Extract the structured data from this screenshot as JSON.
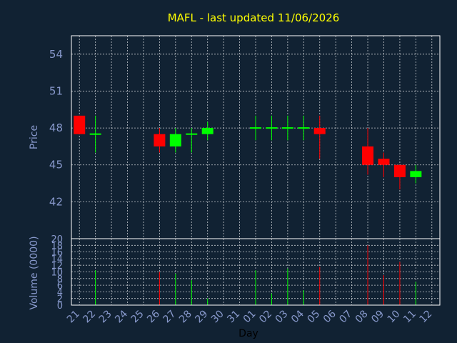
{
  "colors": {
    "background": "#112233",
    "up": "#00ff00",
    "down": "#ff0000",
    "title": "#ffff00",
    "axis_text": "#8899cc",
    "grid": "#ffffff"
  },
  "chart_data": {
    "type": "candlestick",
    "title": "MAFL - last updated 11/06/2026",
    "xlabel": "Day",
    "ylabel": "Price",
    "ylabel2": "Volume (0000)",
    "ylim": [
      39.0,
      55.5
    ],
    "yticks": [
      42,
      45,
      48,
      51,
      54
    ],
    "vol_ylim": [
      0,
      20
    ],
    "vol_ticks": [
      0,
      2,
      4,
      6,
      8,
      10,
      12,
      14,
      16,
      18,
      20
    ],
    "grid": true,
    "x_ticks": [
      "21",
      "22",
      "23",
      "24",
      "25",
      "26",
      "27",
      "28",
      "29",
      "30",
      "31",
      "01",
      "02",
      "03",
      "04",
      "05",
      "06",
      "07",
      "08",
      "09",
      "10",
      "11",
      "12"
    ],
    "candles": [
      {
        "x": "21",
        "open": 49.0,
        "close": 47.5,
        "high": 49.0,
        "low": 47.5,
        "volume": 0
      },
      {
        "x": "22",
        "open": 47.5,
        "close": 47.5,
        "high": 49.0,
        "low": 46.0,
        "volume": 10.5
      },
      {
        "x": "26",
        "open": 47.5,
        "close": 46.5,
        "high": 48.0,
        "low": 46.0,
        "volume": 10.0
      },
      {
        "x": "27",
        "open": 46.5,
        "close": 47.5,
        "high": 48.0,
        "low": 46.0,
        "volume": 9.5
      },
      {
        "x": "28",
        "open": 47.5,
        "close": 47.5,
        "high": 48.0,
        "low": 46.0,
        "volume": 7.5
      },
      {
        "x": "29",
        "open": 47.5,
        "close": 48.0,
        "high": 48.5,
        "low": 47.0,
        "volume": 2.0
      },
      {
        "x": "01",
        "open": 48.0,
        "close": 48.0,
        "high": 49.0,
        "low": 47.0,
        "volume": 10.5
      },
      {
        "x": "02",
        "open": 48.0,
        "close": 48.0,
        "high": 49.0,
        "low": 47.0,
        "volume": 3.5
      },
      {
        "x": "03",
        "open": 48.0,
        "close": 48.0,
        "high": 49.0,
        "low": 47.0,
        "volume": 11.0
      },
      {
        "x": "04",
        "open": 48.0,
        "close": 48.0,
        "high": 49.0,
        "low": 47.0,
        "volume": 4.5
      },
      {
        "x": "05",
        "open": 48.0,
        "close": 47.5,
        "high": 49.0,
        "low": 45.5,
        "volume": 11.5
      },
      {
        "x": "08",
        "open": 46.5,
        "close": 45.0,
        "high": 48.0,
        "low": 44.2,
        "volume": 18.0
      },
      {
        "x": "09",
        "open": 45.5,
        "close": 45.0,
        "high": 46.0,
        "low": 44.0,
        "volume": 9.0
      },
      {
        "x": "10",
        "open": 45.0,
        "close": 44.0,
        "high": 45.0,
        "low": 43.0,
        "volume": 13.0
      },
      {
        "x": "11",
        "open": 44.0,
        "close": 44.5,
        "high": 45.0,
        "low": 43.5,
        "volume": 7.0
      }
    ]
  }
}
